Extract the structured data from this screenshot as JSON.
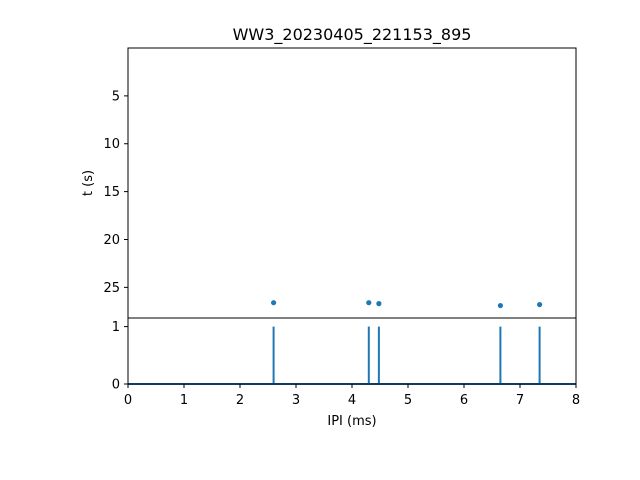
{
  "chart_data": [
    {
      "type": "scatter",
      "title": "WW3_20230405_221153_895",
      "xlabel": "",
      "ylabel": "t (s)",
      "xlim": [
        0,
        8
      ],
      "ylim_inverted": [
        0,
        28.2
      ],
      "yticks": [
        5,
        10,
        15,
        20,
        25
      ],
      "points": [
        {
          "x": 2.6,
          "y": 26.6
        },
        {
          "x": 4.3,
          "y": 26.6
        },
        {
          "x": 4.48,
          "y": 26.7
        },
        {
          "x": 6.65,
          "y": 26.9
        },
        {
          "x": 7.35,
          "y": 26.8
        }
      ],
      "color": "#1f77b4"
    },
    {
      "type": "line",
      "xlabel": "IPI (ms)",
      "xlim": [
        0,
        8
      ],
      "ylim": [
        0,
        1.15
      ],
      "xticks": [
        0,
        1,
        2,
        3,
        4,
        5,
        6,
        7,
        8
      ],
      "yticks": [
        0,
        1
      ],
      "spikes_x": [
        2.6,
        4.3,
        4.48,
        6.65,
        7.35
      ],
      "spike_height": 1,
      "color": "#1f77b4"
    }
  ]
}
